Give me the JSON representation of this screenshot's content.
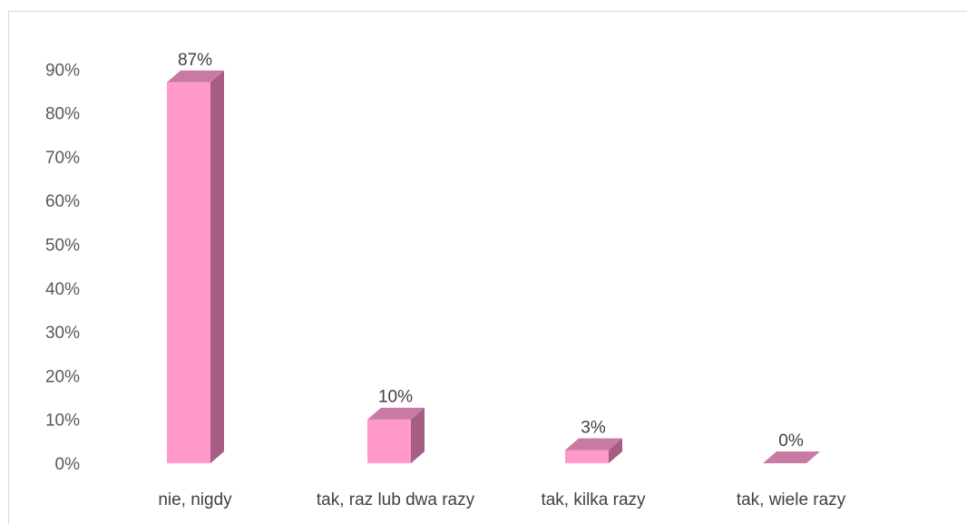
{
  "chart_data": {
    "type": "bar",
    "style": "3d-column",
    "categories": [
      "nie, nigdy",
      "tak, raz lub dwa razy",
      "tak, kilka razy",
      "tak, wiele razy"
    ],
    "values": [
      87,
      10,
      3,
      0
    ],
    "data_labels": [
      "87%",
      "10%",
      "3%",
      "0%"
    ],
    "y_ticks": [
      "0%",
      "10%",
      "20%",
      "30%",
      "40%",
      "50%",
      "60%",
      "70%",
      "80%",
      "90%"
    ],
    "ylim": [
      0,
      90
    ],
    "title": "",
    "xlabel": "",
    "ylabel": "",
    "grid": false,
    "legend": "none",
    "colors": {
      "front": "#ff99cc",
      "side": "#a65e83",
      "top": "#c97aa3"
    }
  }
}
